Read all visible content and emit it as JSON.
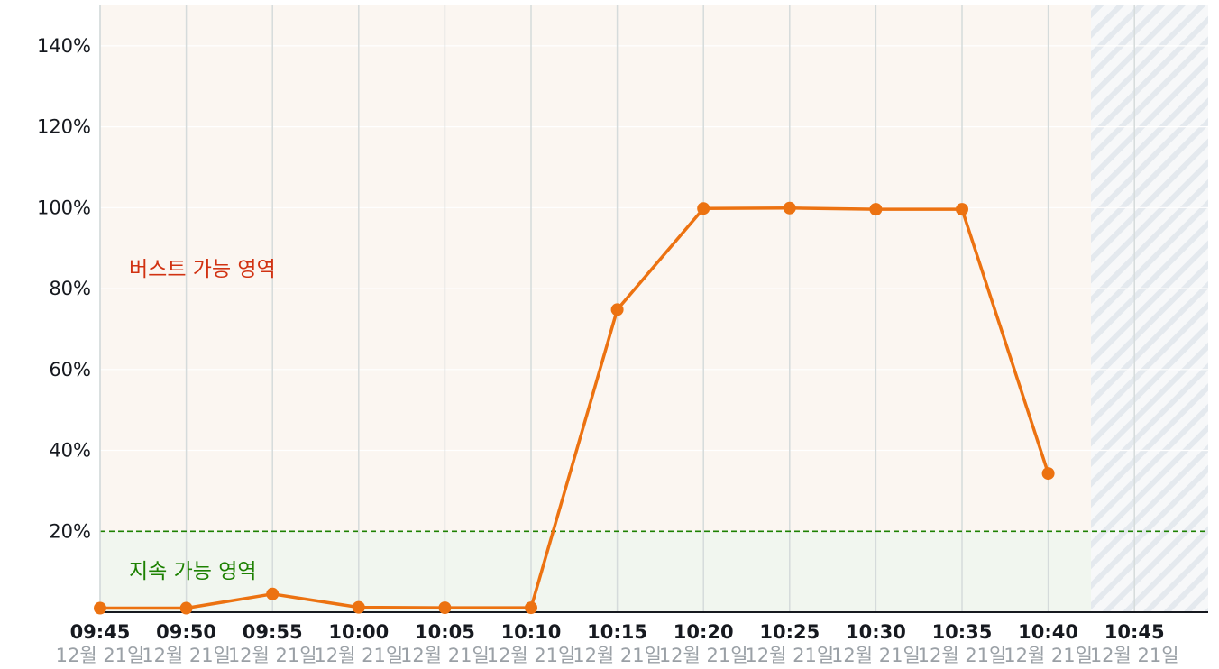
{
  "chart_data": {
    "type": "line",
    "y_tick_labels": [
      "20%",
      "40%",
      "60%",
      "80%",
      "100%",
      "120%",
      "140%"
    ],
    "y_tick_values": [
      20,
      40,
      60,
      80,
      100,
      120,
      140
    ],
    "ylim": [
      0,
      150
    ],
    "x_tick_labels": [
      "09:45",
      "09:50",
      "09:55",
      "10:00",
      "10:05",
      "10:10",
      "10:15",
      "10:20",
      "10:25",
      "10:30",
      "10:35",
      "10:40",
      "10:45"
    ],
    "x_date_label": "12월 21일",
    "threshold": 20,
    "grid": true,
    "zones": {
      "burst_label": "버스트 가능 영역",
      "sustain_label": "지속 가능 영역"
    },
    "series": [
      {
        "x": [
          "09:45",
          "09:50",
          "09:55",
          "10:00",
          "10:05",
          "10:10",
          "10:15",
          "10:20",
          "10:25",
          "10:30",
          "10:35",
          "10:40"
        ],
        "values": [
          1,
          1,
          4.5,
          1.2,
          1.1,
          1.1,
          74.8,
          99.8,
          99.9,
          99.6,
          99.6,
          34.3
        ]
      }
    ]
  },
  "colors": {
    "line": "#ec7211",
    "threshold": "#1d8102",
    "burst_zone": "#fbf6f1",
    "sustain_zone": "#f1f6ef",
    "grid": "#d5dbdb"
  }
}
